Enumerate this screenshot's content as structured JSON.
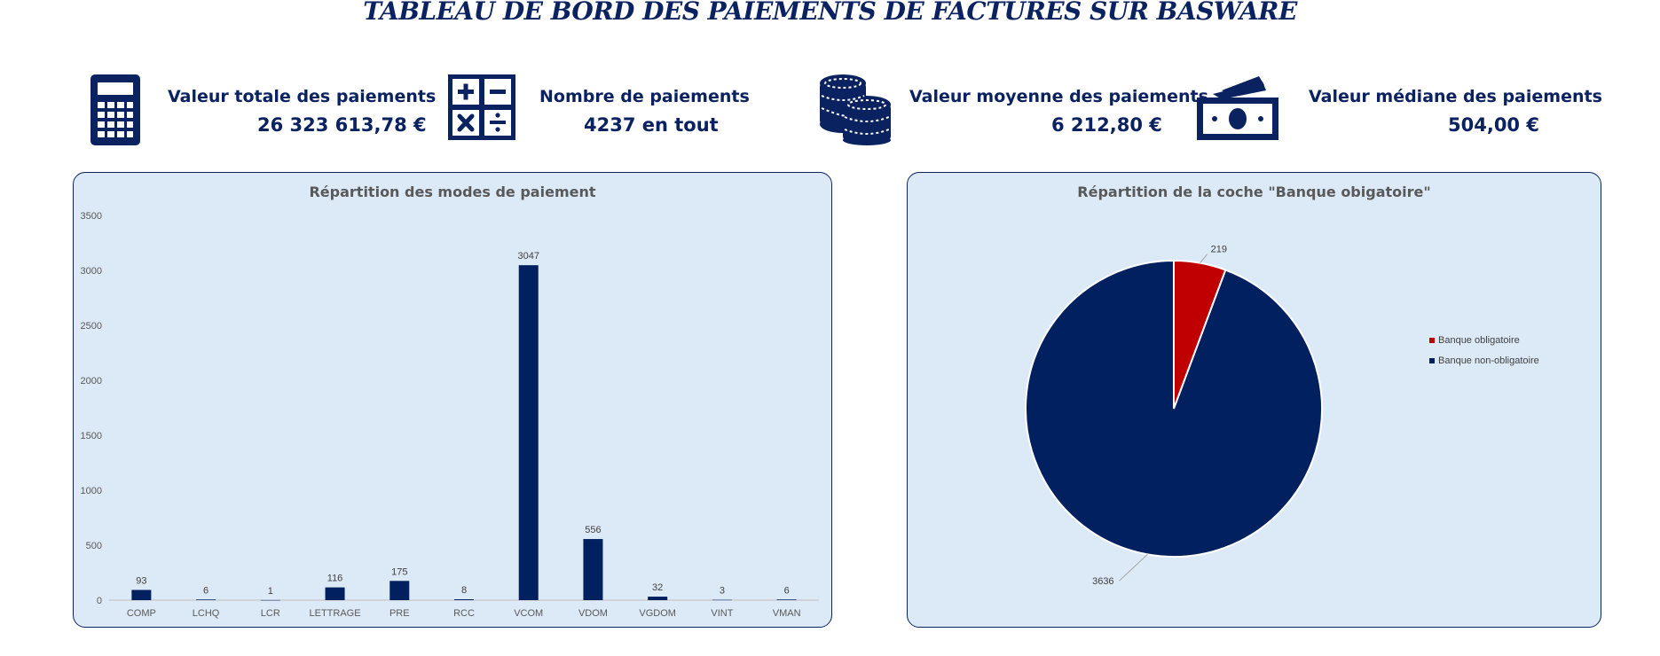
{
  "title": "TABLEAU DE BORD DES PAIEMENTS DE FACTURES SUR BASWARE",
  "kpis": [
    {
      "label": "Valeur totale des paiements",
      "value": "26 323 613,78 €",
      "icon": "calculator-icon"
    },
    {
      "label": "Nombre de paiements",
      "value": "4237 en tout",
      "icon": "math-operators-icon"
    },
    {
      "label": "Valeur moyenne des paiements",
      "value": "6 212,80 €",
      "icon": "coins-icon"
    },
    {
      "label": "Valeur médiane des paiements",
      "value": "504,00 €",
      "icon": "banknotes-icon"
    }
  ],
  "colors": {
    "navy": "#002060",
    "red": "#c00000",
    "panel_bg": "#dce9f6"
  },
  "chart_data": [
    {
      "type": "bar",
      "title": "Répartition des modes de paiement",
      "categories": [
        "COMP",
        "LCHQ",
        "LCR",
        "LETTRAGE",
        "PRE",
        "RCC",
        "VCOM",
        "VDOM",
        "VGDOM",
        "VINT",
        "VMAN"
      ],
      "values": [
        93,
        6,
        1,
        116,
        175,
        8,
        3047,
        556,
        32,
        3,
        6
      ],
      "ylim": [
        0,
        3500
      ],
      "yticks": [
        0,
        500,
        1000,
        1500,
        2000,
        2500,
        3000,
        3500
      ],
      "grid": false,
      "data_labels": true
    },
    {
      "type": "pie",
      "title": "Répartition de la coche \"Banque obigatoire\"",
      "labels": [
        "Banque obligatoire",
        "Banque non-obligatoire"
      ],
      "values": [
        219,
        3636
      ],
      "colors": [
        "#c00000",
        "#002060"
      ],
      "legend": "right",
      "data_labels": true
    }
  ]
}
